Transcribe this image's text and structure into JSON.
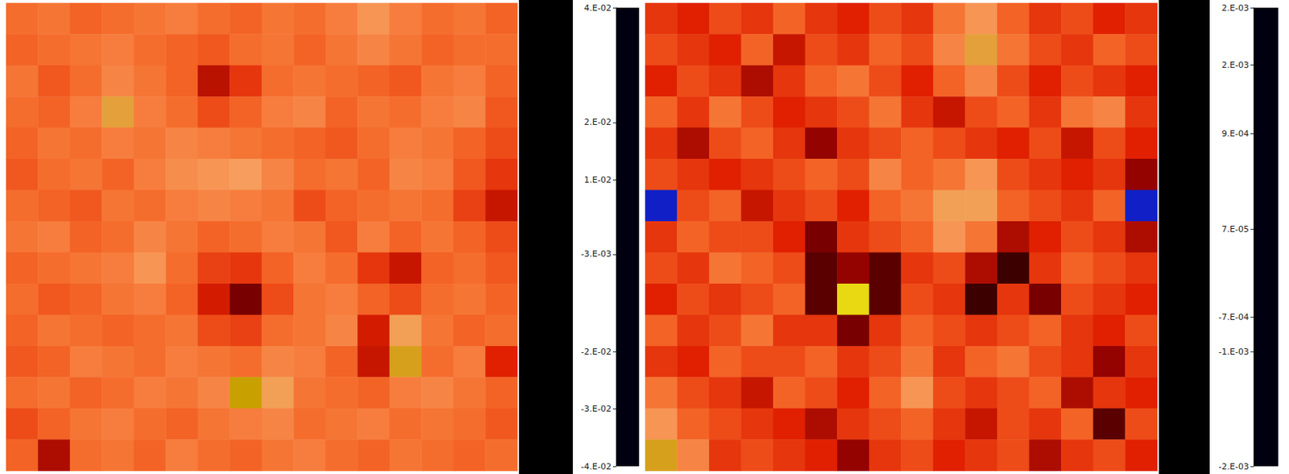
{
  "chart_data": [
    {
      "type": "heatmap",
      "tick_labels": false,
      "cells": [
        [
          0.007,
          0.008,
          0.006,
          0.007,
          0.008,
          0.009,
          0.007,
          0.006,
          0.008,
          0.007,
          0.009,
          0.012,
          0.009,
          0.007,
          0.008,
          0.006
        ],
        [
          0.006,
          0.007,
          0.008,
          0.009,
          0.007,
          0.006,
          0.005,
          0.007,
          0.008,
          0.006,
          0.008,
          0.01,
          0.008,
          0.006,
          0.007,
          0.007
        ],
        [
          0.008,
          0.005,
          0.007,
          0.01,
          0.008,
          0.006,
          -0.003,
          0.002,
          0.007,
          0.008,
          0.007,
          0.006,
          0.005,
          0.008,
          0.009,
          0.006
        ],
        [
          0.007,
          0.006,
          0.009,
          0.016,
          0.009,
          0.007,
          0.004,
          0.006,
          0.009,
          0.01,
          0.006,
          0.008,
          0.007,
          0.009,
          0.01,
          0.005
        ],
        [
          0.006,
          0.008,
          0.007,
          0.009,
          0.008,
          0.01,
          0.009,
          0.008,
          0.007,
          0.006,
          0.005,
          0.007,
          0.009,
          0.008,
          0.006,
          0.004
        ],
        [
          0.005,
          0.007,
          0.008,
          0.006,
          0.009,
          0.011,
          0.012,
          0.013,
          0.01,
          0.007,
          0.008,
          0.006,
          0.01,
          0.009,
          0.005,
          0.002
        ],
        [
          0.007,
          0.006,
          0.005,
          0.008,
          0.007,
          0.009,
          0.01,
          0.009,
          0.008,
          0.004,
          0.006,
          0.007,
          0.008,
          0.007,
          0.003,
          -0.002
        ],
        [
          0.008,
          0.009,
          0.006,
          0.007,
          0.01,
          0.008,
          0.006,
          0.007,
          0.009,
          0.008,
          0.005,
          0.009,
          0.006,
          0.008,
          0.006,
          0.004
        ],
        [
          0.006,
          0.007,
          0.008,
          0.009,
          0.012,
          0.007,
          0.003,
          0.002,
          0.006,
          0.009,
          0.007,
          0.002,
          -0.002,
          0.006,
          0.007,
          0.005
        ],
        [
          0.007,
          0.005,
          0.006,
          0.008,
          0.009,
          0.006,
          -0.001,
          -0.008,
          0.004,
          0.008,
          0.009,
          0.006,
          0.004,
          0.007,
          0.008,
          0.006
        ],
        [
          0.006,
          0.008,
          0.007,
          0.006,
          0.007,
          0.008,
          0.004,
          0.003,
          0.007,
          0.008,
          0.01,
          -0.001,
          0.014,
          0.008,
          0.006,
          0.007
        ],
        [
          0.005,
          0.006,
          0.009,
          0.008,
          0.007,
          0.009,
          0.008,
          0.007,
          0.01,
          0.009,
          0.006,
          -0.002,
          0.018,
          0.007,
          0.009,
          0.0
        ],
        [
          0.007,
          0.008,
          0.006,
          0.007,
          0.009,
          0.008,
          0.01,
          0.02,
          0.014,
          0.008,
          0.007,
          0.006,
          0.009,
          0.01,
          0.008,
          0.006
        ],
        [
          0.004,
          0.006,
          0.008,
          0.009,
          0.007,
          0.006,
          0.008,
          0.009,
          0.01,
          0.007,
          0.008,
          0.009,
          0.007,
          0.008,
          0.007,
          0.005
        ],
        [
          0.006,
          -0.004,
          0.007,
          0.008,
          0.006,
          0.009,
          0.007,
          0.006,
          0.008,
          0.009,
          0.007,
          0.006,
          0.008,
          0.007,
          0.006,
          0.007
        ]
      ],
      "colorbar": {
        "range": [
          -0.04,
          0.04
        ],
        "ticks": [
          {
            "value": 0.04,
            "label": "4.E-02"
          },
          {
            "value": 0.02,
            "label": "2.E-02"
          },
          {
            "value": 0.01,
            "label": "1.E-02"
          },
          {
            "value": -0.003,
            "label": "-3.E-03"
          },
          {
            "value": -0.02,
            "label": "-2.E-02"
          },
          {
            "value": -0.03,
            "label": "-3.E-02"
          },
          {
            "value": -0.04,
            "label": "-4.E-02"
          }
        ]
      }
    },
    {
      "type": "heatmap",
      "tick_labels": false,
      "cells": [
        [
          0.0001,
          0.0,
          0.0002,
          0.0001,
          0.0003,
          0.0001,
          0.0,
          0.0002,
          0.0001,
          0.0004,
          0.0006,
          0.0003,
          0.0001,
          0.0002,
          0.0,
          0.0001
        ],
        [
          0.0002,
          0.0001,
          0.0,
          0.0003,
          -0.0001,
          0.0002,
          0.0001,
          0.0003,
          0.0002,
          0.0005,
          0.0008,
          0.0004,
          0.0002,
          0.0001,
          0.0003,
          0.0002
        ],
        [
          0.0,
          0.0002,
          0.0001,
          -0.0002,
          0.0001,
          0.0003,
          0.0004,
          0.0002,
          0.0,
          0.0003,
          0.0005,
          0.0002,
          0.0,
          0.0002,
          0.0001,
          0.0
        ],
        [
          0.0003,
          0.0001,
          0.0004,
          0.0002,
          0.0,
          0.0001,
          0.0002,
          0.0004,
          0.0001,
          -0.0001,
          0.0002,
          0.0003,
          0.0001,
          0.0004,
          0.0005,
          0.0001
        ],
        [
          0.0001,
          -0.0002,
          0.0002,
          0.0003,
          0.0001,
          -0.0003,
          0.0001,
          0.0002,
          0.0003,
          0.0002,
          0.0001,
          0.0,
          0.0002,
          -0.0001,
          0.0002,
          0.0
        ],
        [
          0.0002,
          0.0001,
          0.0,
          0.0001,
          0.0002,
          0.0003,
          0.0002,
          0.0005,
          0.0003,
          0.0004,
          0.0006,
          0.0002,
          0.0001,
          0.0,
          0.0001,
          -0.0003
        ],
        [
          -0.0015,
          0.0002,
          0.0003,
          -0.0001,
          0.0001,
          0.0002,
          0.0,
          0.0003,
          0.0004,
          0.0007,
          0.0007,
          0.0003,
          0.0002,
          0.0001,
          0.0003,
          -0.0015
        ],
        [
          0.0001,
          0.0003,
          0.0002,
          0.0002,
          0.0,
          -0.0004,
          0.0001,
          0.0002,
          0.0003,
          0.0006,
          0.0004,
          -0.0002,
          0.0,
          0.0002,
          0.0001,
          -0.0002
        ],
        [
          0.0002,
          0.0001,
          0.0004,
          0.0003,
          0.0002,
          -0.0005,
          -0.0003,
          -0.0005,
          0.0001,
          0.0002,
          -0.0002,
          -0.0006,
          0.0001,
          0.0003,
          0.0002,
          0.0001
        ],
        [
          0.0,
          0.0002,
          0.0001,
          0.0002,
          0.0003,
          -0.0005,
          0.0012,
          -0.0005,
          0.0002,
          0.0001,
          -0.0006,
          0.0001,
          -0.0004,
          0.0002,
          0.0001,
          0.0
        ],
        [
          0.0003,
          0.0001,
          0.0002,
          0.0004,
          0.0001,
          0.0001,
          -0.0004,
          0.0001,
          0.0003,
          0.0002,
          0.0001,
          0.0002,
          0.0003,
          0.0001,
          0.0,
          0.0002
        ],
        [
          0.0001,
          0.0,
          0.0003,
          0.0002,
          0.0002,
          0.0003,
          0.0001,
          0.0002,
          0.0004,
          0.0001,
          0.0003,
          0.0004,
          0.0002,
          0.0001,
          -0.0003,
          0.0001
        ],
        [
          0.0004,
          0.0002,
          0.0001,
          -0.0001,
          0.0003,
          0.0002,
          0.0,
          0.0003,
          0.0006,
          0.0002,
          0.0001,
          0.0002,
          0.0003,
          -0.0002,
          0.0001,
          0.0
        ],
        [
          0.0006,
          0.0003,
          0.0002,
          0.0001,
          0.0,
          -0.0002,
          0.0001,
          0.0002,
          0.0003,
          0.0001,
          -0.0001,
          0.0002,
          0.0001,
          0.0003,
          -0.0005,
          0.0002
        ],
        [
          0.0009,
          0.0005,
          0.0001,
          0.0002,
          0.0001,
          0.0,
          -0.0003,
          0.0001,
          0.0002,
          0.0,
          0.0001,
          0.0002,
          -0.0002,
          0.0001,
          0.0002,
          0.0
        ]
      ],
      "colorbar": {
        "range": [
          -0.002,
          0.002
        ],
        "ticks": [
          {
            "value": 0.002,
            "label": "2.E-03"
          },
          {
            "value": 0.0015,
            "label": "2.E-03"
          },
          {
            "value": 0.0009,
            "label": "9.E-04"
          },
          {
            "value": 7e-05,
            "label": "7.E-05"
          },
          {
            "value": -0.0007,
            "label": "-7.E-04"
          },
          {
            "value": -0.001,
            "label": "-1.E-03"
          },
          {
            "value": -0.002,
            "label": "-2.E-03"
          }
        ]
      }
    }
  ]
}
